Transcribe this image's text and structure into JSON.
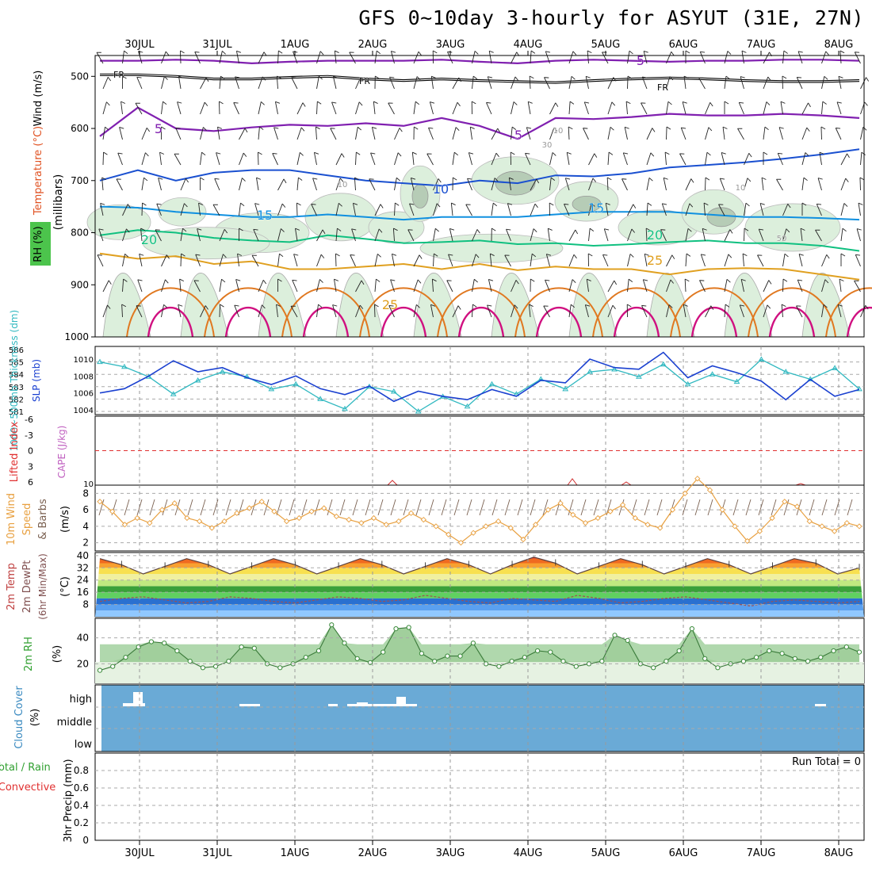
{
  "title": "GFS 0~10day 3-hourly for ASYUT (31E, 27N)",
  "colors": {
    "rh_fill": "#4cc44c",
    "cloud_bg": "#6aaad6",
    "temp_bands": [
      "#f0f0a0",
      "#f8e050",
      "#f8a030",
      "#f06a20",
      "#e03010",
      "#b81010",
      "#3aa03a",
      "#60d060",
      "#2a70d0",
      "#5aa0f0",
      "#90c8ff"
    ]
  },
  "chart_data": [
    {
      "panel": "upper-air",
      "type": "line",
      "x_ticks": [
        "30JUL",
        "31JUL",
        "1AUG",
        "2AUG",
        "3AUG",
        "4AUG",
        "5AUG",
        "6AUG",
        "7AUG",
        "8AUG"
      ],
      "ylabel_parts": [
        "Wind (m/s)",
        "Temperature (°C)",
        "(millibars)",
        "RH (%)"
      ],
      "y_ticks": [
        "500",
        "600",
        "700",
        "800",
        "900",
        "1000"
      ],
      "ylim": [
        460,
        1000
      ],
      "y_scale": "pressure-descending",
      "isotherm_labels": [
        "FR",
        "FR",
        "FR",
        "5",
        "5",
        "5",
        "5",
        "10",
        "10",
        "15",
        "15",
        "20",
        "20",
        "25",
        "25",
        "10",
        "10",
        "30",
        "50"
      ],
      "isotherms": [
        {
          "name": "FR",
          "values": [
            497,
            497,
            500,
            505,
            505,
            502,
            500,
            505,
            508,
            505,
            508,
            510,
            512,
            508,
            505,
            503,
            505,
            508,
            510,
            510,
            508
          ]
        },
        {
          "name": "5",
          "values": [
            470,
            470,
            468,
            470,
            475,
            472,
            470,
            470,
            470,
            468,
            472,
            475,
            470,
            468,
            470,
            472,
            470,
            470,
            468,
            468,
            470
          ]
        },
        {
          "name": "5",
          "values": [
            615,
            560,
            600,
            605,
            598,
            593,
            595,
            590,
            595,
            580,
            595,
            620,
            580,
            582,
            578,
            572,
            575,
            575,
            572,
            575,
            580
          ]
        },
        {
          "name": "10",
          "values": [
            700,
            680,
            700,
            685,
            680,
            680,
            690,
            700,
            705,
            710,
            700,
            705,
            690,
            692,
            686,
            675,
            670,
            665,
            658,
            650,
            640
          ]
        },
        {
          "name": "15",
          "values": [
            750,
            752,
            760,
            765,
            770,
            770,
            765,
            770,
            775,
            770,
            770,
            770,
            765,
            760,
            760,
            760,
            765,
            770,
            770,
            772,
            775
          ]
        },
        {
          "name": "20",
          "values": [
            805,
            795,
            800,
            810,
            815,
            818,
            805,
            812,
            820,
            818,
            815,
            822,
            820,
            825,
            822,
            818,
            815,
            820,
            820,
            825,
            835
          ]
        },
        {
          "name": "25",
          "values": [
            840,
            850,
            845,
            860,
            855,
            870,
            870,
            865,
            860,
            870,
            860,
            872,
            865,
            870,
            870,
            880,
            870,
            868,
            870,
            880,
            890
          ]
        }
      ]
    },
    {
      "panel": "thickness-slp",
      "type": "line",
      "ylabel_left": "1000~500mb Thickness (dm)",
      "ylabel_right": "SLP (mb)",
      "y_ticks_left": [
        "586",
        "585",
        "584",
        "583",
        "582",
        "581"
      ],
      "y_ticks_right": [
        "1010",
        "1008",
        "1006",
        "1004"
      ],
      "series": [
        {
          "name": "Thickness",
          "values": [
            585,
            584.6,
            583.8,
            582.4,
            583.5,
            584.2,
            583.8,
            582.8,
            583.2,
            582,
            581.2,
            583,
            582.6,
            581,
            582.2,
            581.4,
            583.2,
            582.4,
            583.6,
            582.8,
            584.2,
            584.4,
            583.8,
            584.8,
            583.2,
            584,
            583.4,
            585.2,
            584.2,
            583.6,
            584.5,
            582.8
          ]
        },
        {
          "name": "SLP",
          "values": [
            1006,
            1006.5,
            1008,
            1009.8,
            1008.5,
            1009,
            1007.8,
            1007,
            1008,
            1006.5,
            1005.8,
            1006.8,
            1005,
            1006.2,
            1005.6,
            1005.2,
            1006.4,
            1005.6,
            1007.5,
            1007.2,
            1010,
            1009,
            1008.8,
            1010.8,
            1007.8,
            1009.2,
            1008.4,
            1007.4,
            1005.2,
            1007.6,
            1005.6,
            1006.4
          ]
        }
      ]
    },
    {
      "panel": "lifted-index-cape",
      "type": "line",
      "ylabel_left": "Lifted Index",
      "ylabel_right": "CAPE (J/kg)",
      "y_ticks_left": [
        "-6",
        "-3",
        "0",
        "3",
        "6"
      ],
      "y_ticks_right": [
        "10"
      ],
      "lifted_index_zero_line": 0
    },
    {
      "panel": "10m-wind",
      "type": "line",
      "ylabel_parts": [
        "10m Wind",
        "Speed",
        "& Barbs",
        "(m/s)"
      ],
      "y_ticks": [
        "8",
        "6",
        "4",
        "2"
      ],
      "ylim": [
        1,
        9
      ],
      "series": [
        {
          "name": "Speed",
          "values": [
            7,
            5.8,
            4.2,
            5,
            4.4,
            6,
            6.8,
            5,
            4.6,
            3.8,
            4.6,
            5.6,
            6.2,
            7,
            5.8,
            4.6,
            5,
            5.8,
            6.2,
            5.2,
            4.8,
            4.4,
            5,
            4.2,
            4.6,
            5.6,
            4.8,
            4,
            3,
            2,
            3.2,
            4,
            4.6,
            3.8,
            2.4,
            4.2,
            6,
            6.8,
            5.4,
            4.4,
            5,
            5.8,
            6.6,
            5,
            4.2,
            3.8,
            6,
            8,
            9.8,
            8.4,
            6,
            4,
            2.2,
            3.4,
            5,
            7,
            6.4,
            4.6,
            4,
            3.4,
            4.4,
            4
          ]
        }
      ]
    },
    {
      "panel": "2m-temp",
      "type": "area",
      "ylabel_parts": [
        "2m Temp",
        "2m DewPt",
        "(6hr Min/Max)",
        "(°C)"
      ],
      "y_ticks": [
        "40",
        "32",
        "24",
        "16",
        "8"
      ],
      "ylim": [
        0,
        42
      ],
      "series": [
        {
          "name": "Temp",
          "values": [
            38,
            34,
            28,
            33,
            38,
            34,
            28,
            33,
            38,
            34,
            28,
            33,
            38,
            34,
            28,
            33,
            38,
            34,
            28,
            34,
            39,
            35,
            28,
            33,
            38,
            34,
            28,
            33,
            38,
            34,
            28,
            33,
            38,
            35,
            28,
            32
          ]
        },
        {
          "name": "DewPt",
          "values": [
            10,
            12,
            13,
            11,
            9,
            10,
            13,
            12,
            10,
            9,
            11,
            13,
            12,
            10,
            11,
            14,
            12,
            10,
            9,
            12,
            11,
            10,
            14,
            12,
            9,
            10,
            12,
            13,
            11,
            9,
            7,
            10,
            11,
            10,
            9,
            10
          ]
        }
      ]
    },
    {
      "panel": "2m-rh",
      "type": "area",
      "ylabel_parts": [
        "2m RH",
        "(%)"
      ],
      "y_ticks": [
        "40",
        "20"
      ],
      "ylim": [
        5,
        55
      ],
      "series": [
        {
          "name": "RH",
          "values": [
            15,
            18,
            25,
            33,
            37,
            36,
            30,
            22,
            17,
            18,
            22,
            33,
            32,
            20,
            17,
            20,
            25,
            30,
            50,
            36,
            24,
            21,
            29,
            47,
            48,
            28,
            22,
            26,
            26,
            36,
            20,
            18,
            22,
            25,
            30,
            29,
            22,
            18,
            20,
            22,
            42,
            38,
            20,
            17,
            22,
            30,
            47,
            24,
            17,
            20,
            22,
            25,
            30,
            28,
            24,
            22,
            25,
            30,
            33,
            29
          ]
        }
      ]
    },
    {
      "panel": "cloud-cover",
      "type": "bar",
      "ylabel_parts": [
        "Cloud Cover",
        "(%)"
      ],
      "y_ticks": [
        "high",
        "middle",
        "low"
      ]
    },
    {
      "panel": "precip",
      "type": "bar",
      "ylabel_parts": [
        "Total / Rain",
        "Convective",
        "3hr Precip (mm)"
      ],
      "y_ticks": [
        "0.8",
        "0.6",
        "0.4",
        "0.2",
        "0"
      ],
      "ylim": [
        0,
        1.0
      ],
      "annotation": "Run Total = 0"
    }
  ]
}
